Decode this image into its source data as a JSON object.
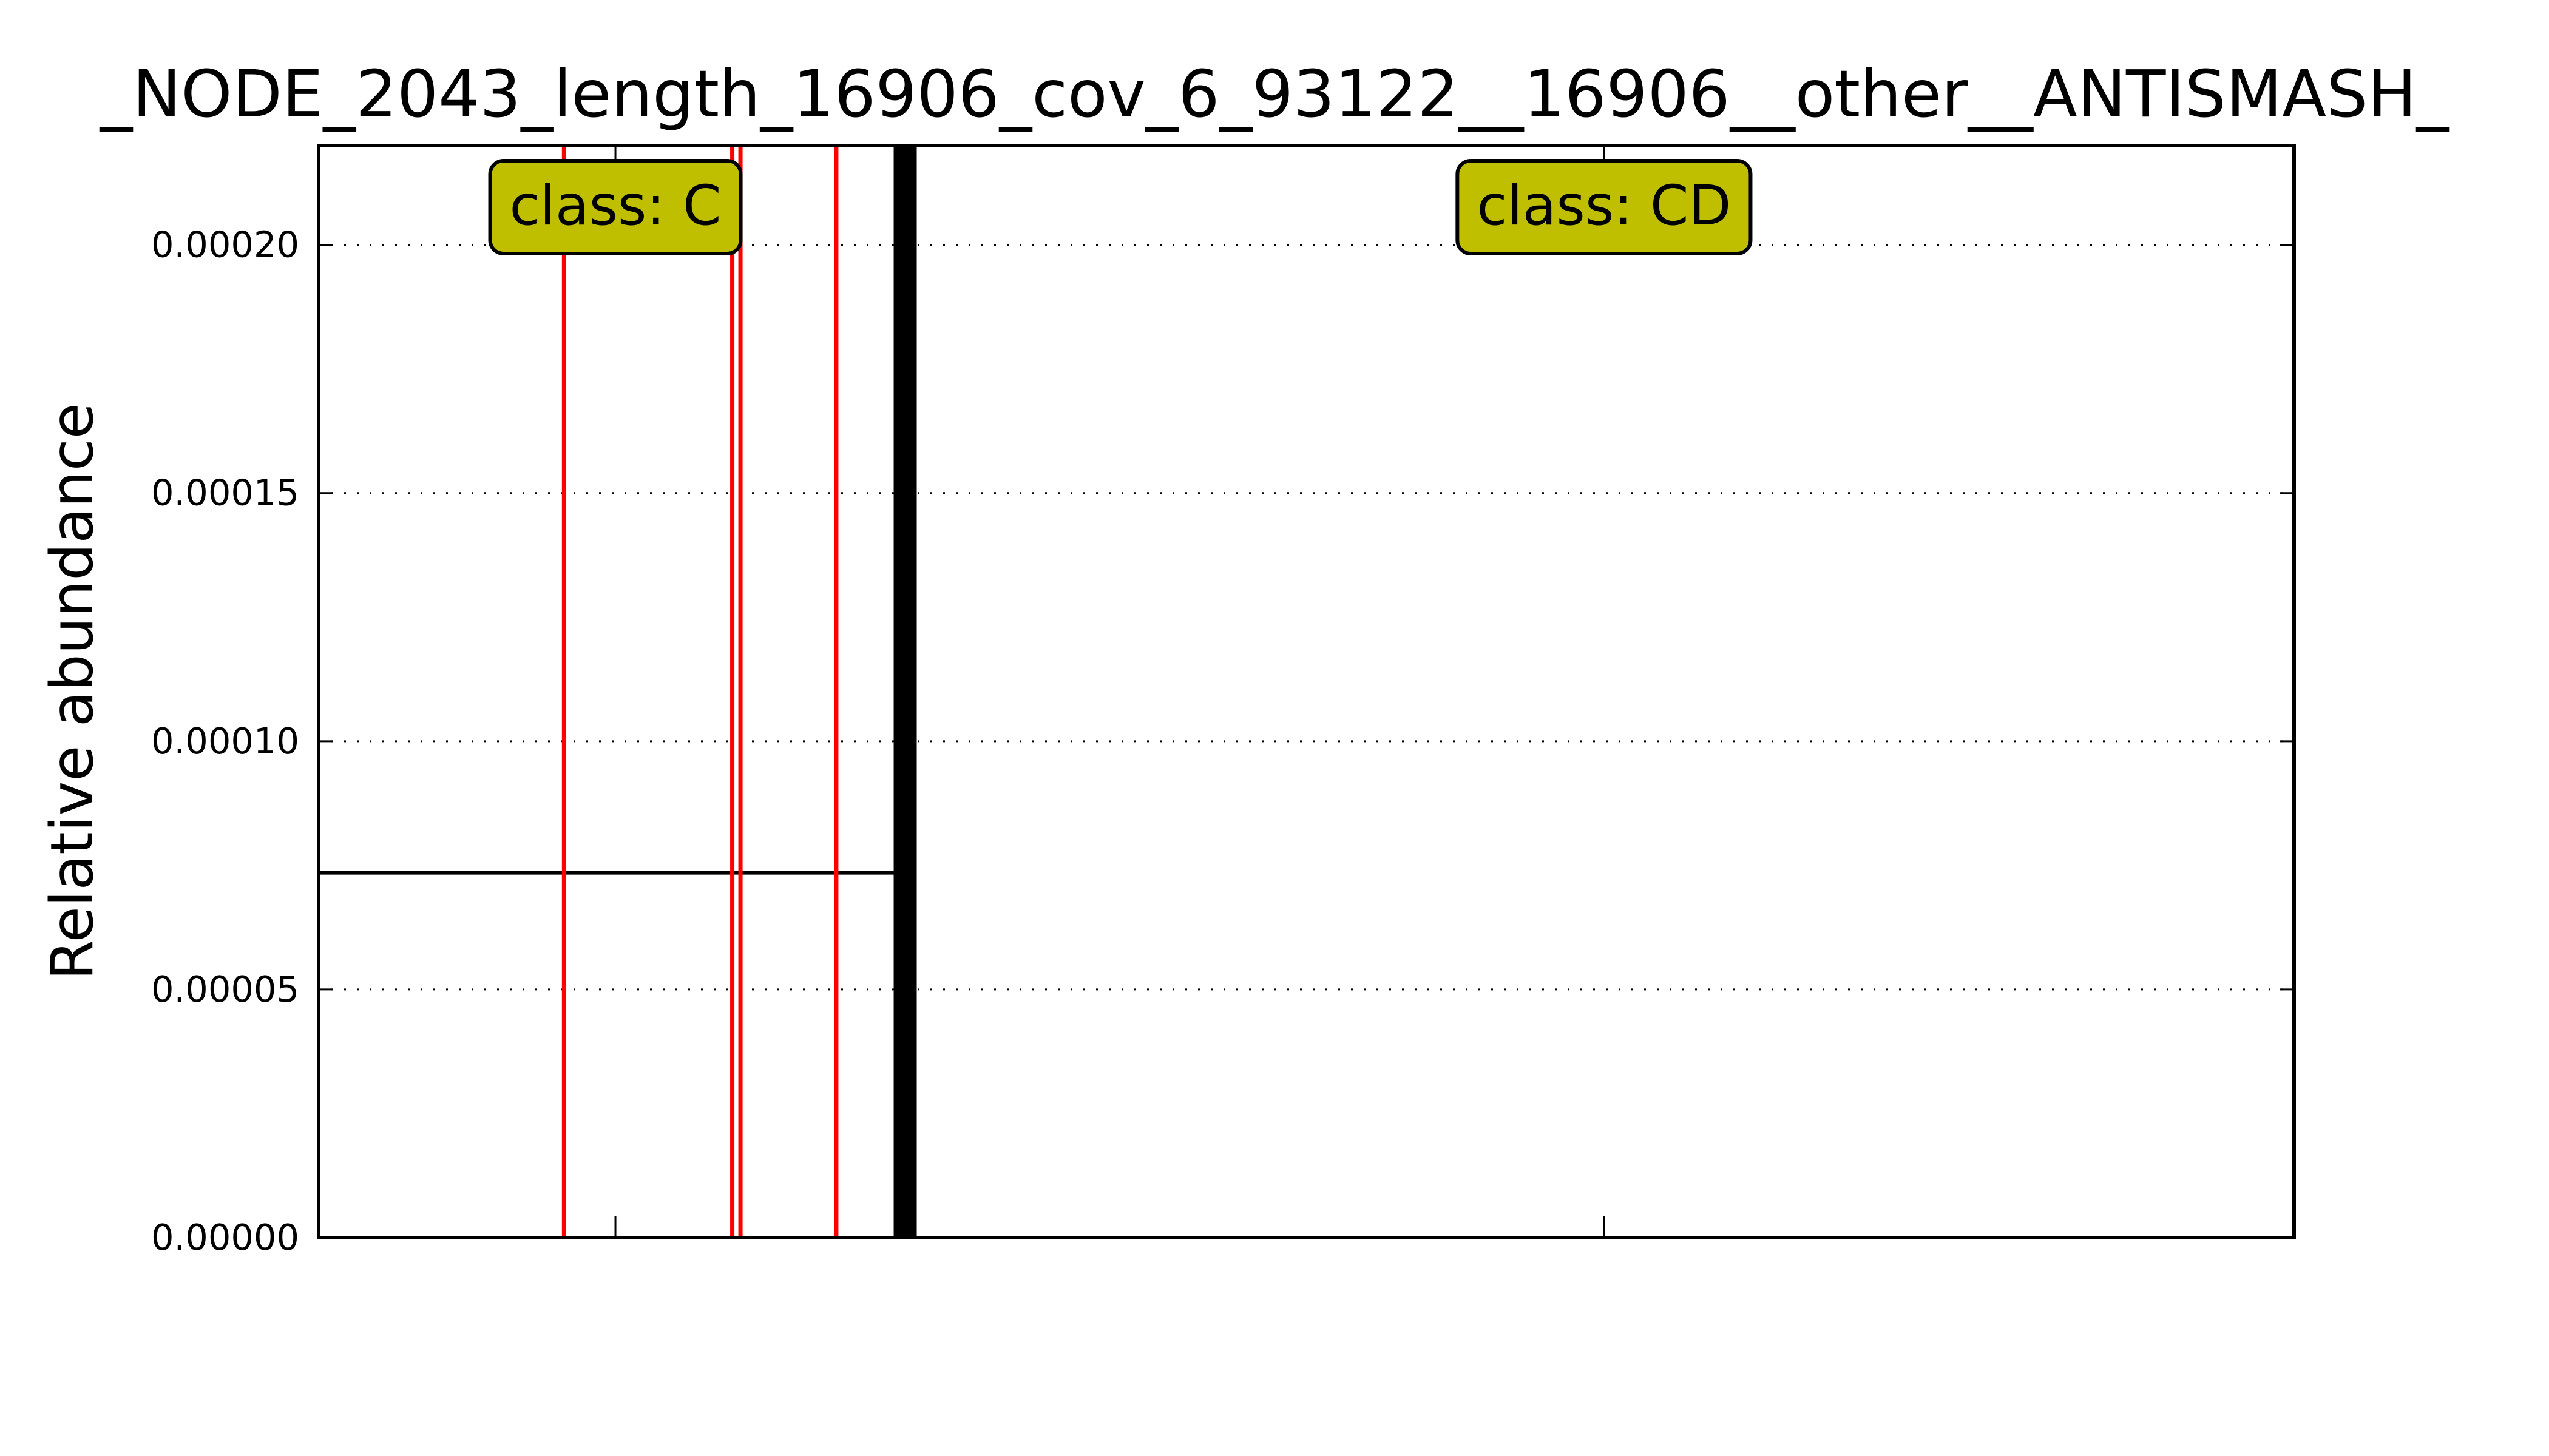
{
  "chart_data": {
    "type": "line",
    "title": "_NODE_2043_length_16906_cov_6_93122__16906__other__ANTISMASH_",
    "xlabel": "",
    "ylabel": "Relative abundance",
    "ylim": [
      0,
      0.00022
    ],
    "xlim": [
      0,
      16906
    ],
    "yticks": [
      "0.00000",
      "0.00005",
      "0.00010",
      "0.00015",
      "0.00020"
    ],
    "ytick_values": [
      0,
      5e-05,
      0.0001,
      0.00015,
      0.0002
    ],
    "xtick_values": [
      2540,
      11000
    ],
    "grid": {
      "y": true,
      "x": false,
      "style": "dotted"
    },
    "series": [
      {
        "values": [
          {
            "x": 0,
            "y": 7.35e-05
          },
          {
            "x": 4950,
            "y": 7.35e-05
          }
        ],
        "color": "#000000"
      }
    ],
    "red_markers": [
      2100,
      3540,
      3610,
      4430
    ],
    "region_boundary": 5020,
    "region_labels": [
      {
        "text": "class: C",
        "x": 2540
      },
      {
        "text": "class: CD",
        "x": 11000
      }
    ],
    "colors": {
      "marker": "#ff0000",
      "label_box": "#bfbf00",
      "boundary": "#000000"
    }
  }
}
